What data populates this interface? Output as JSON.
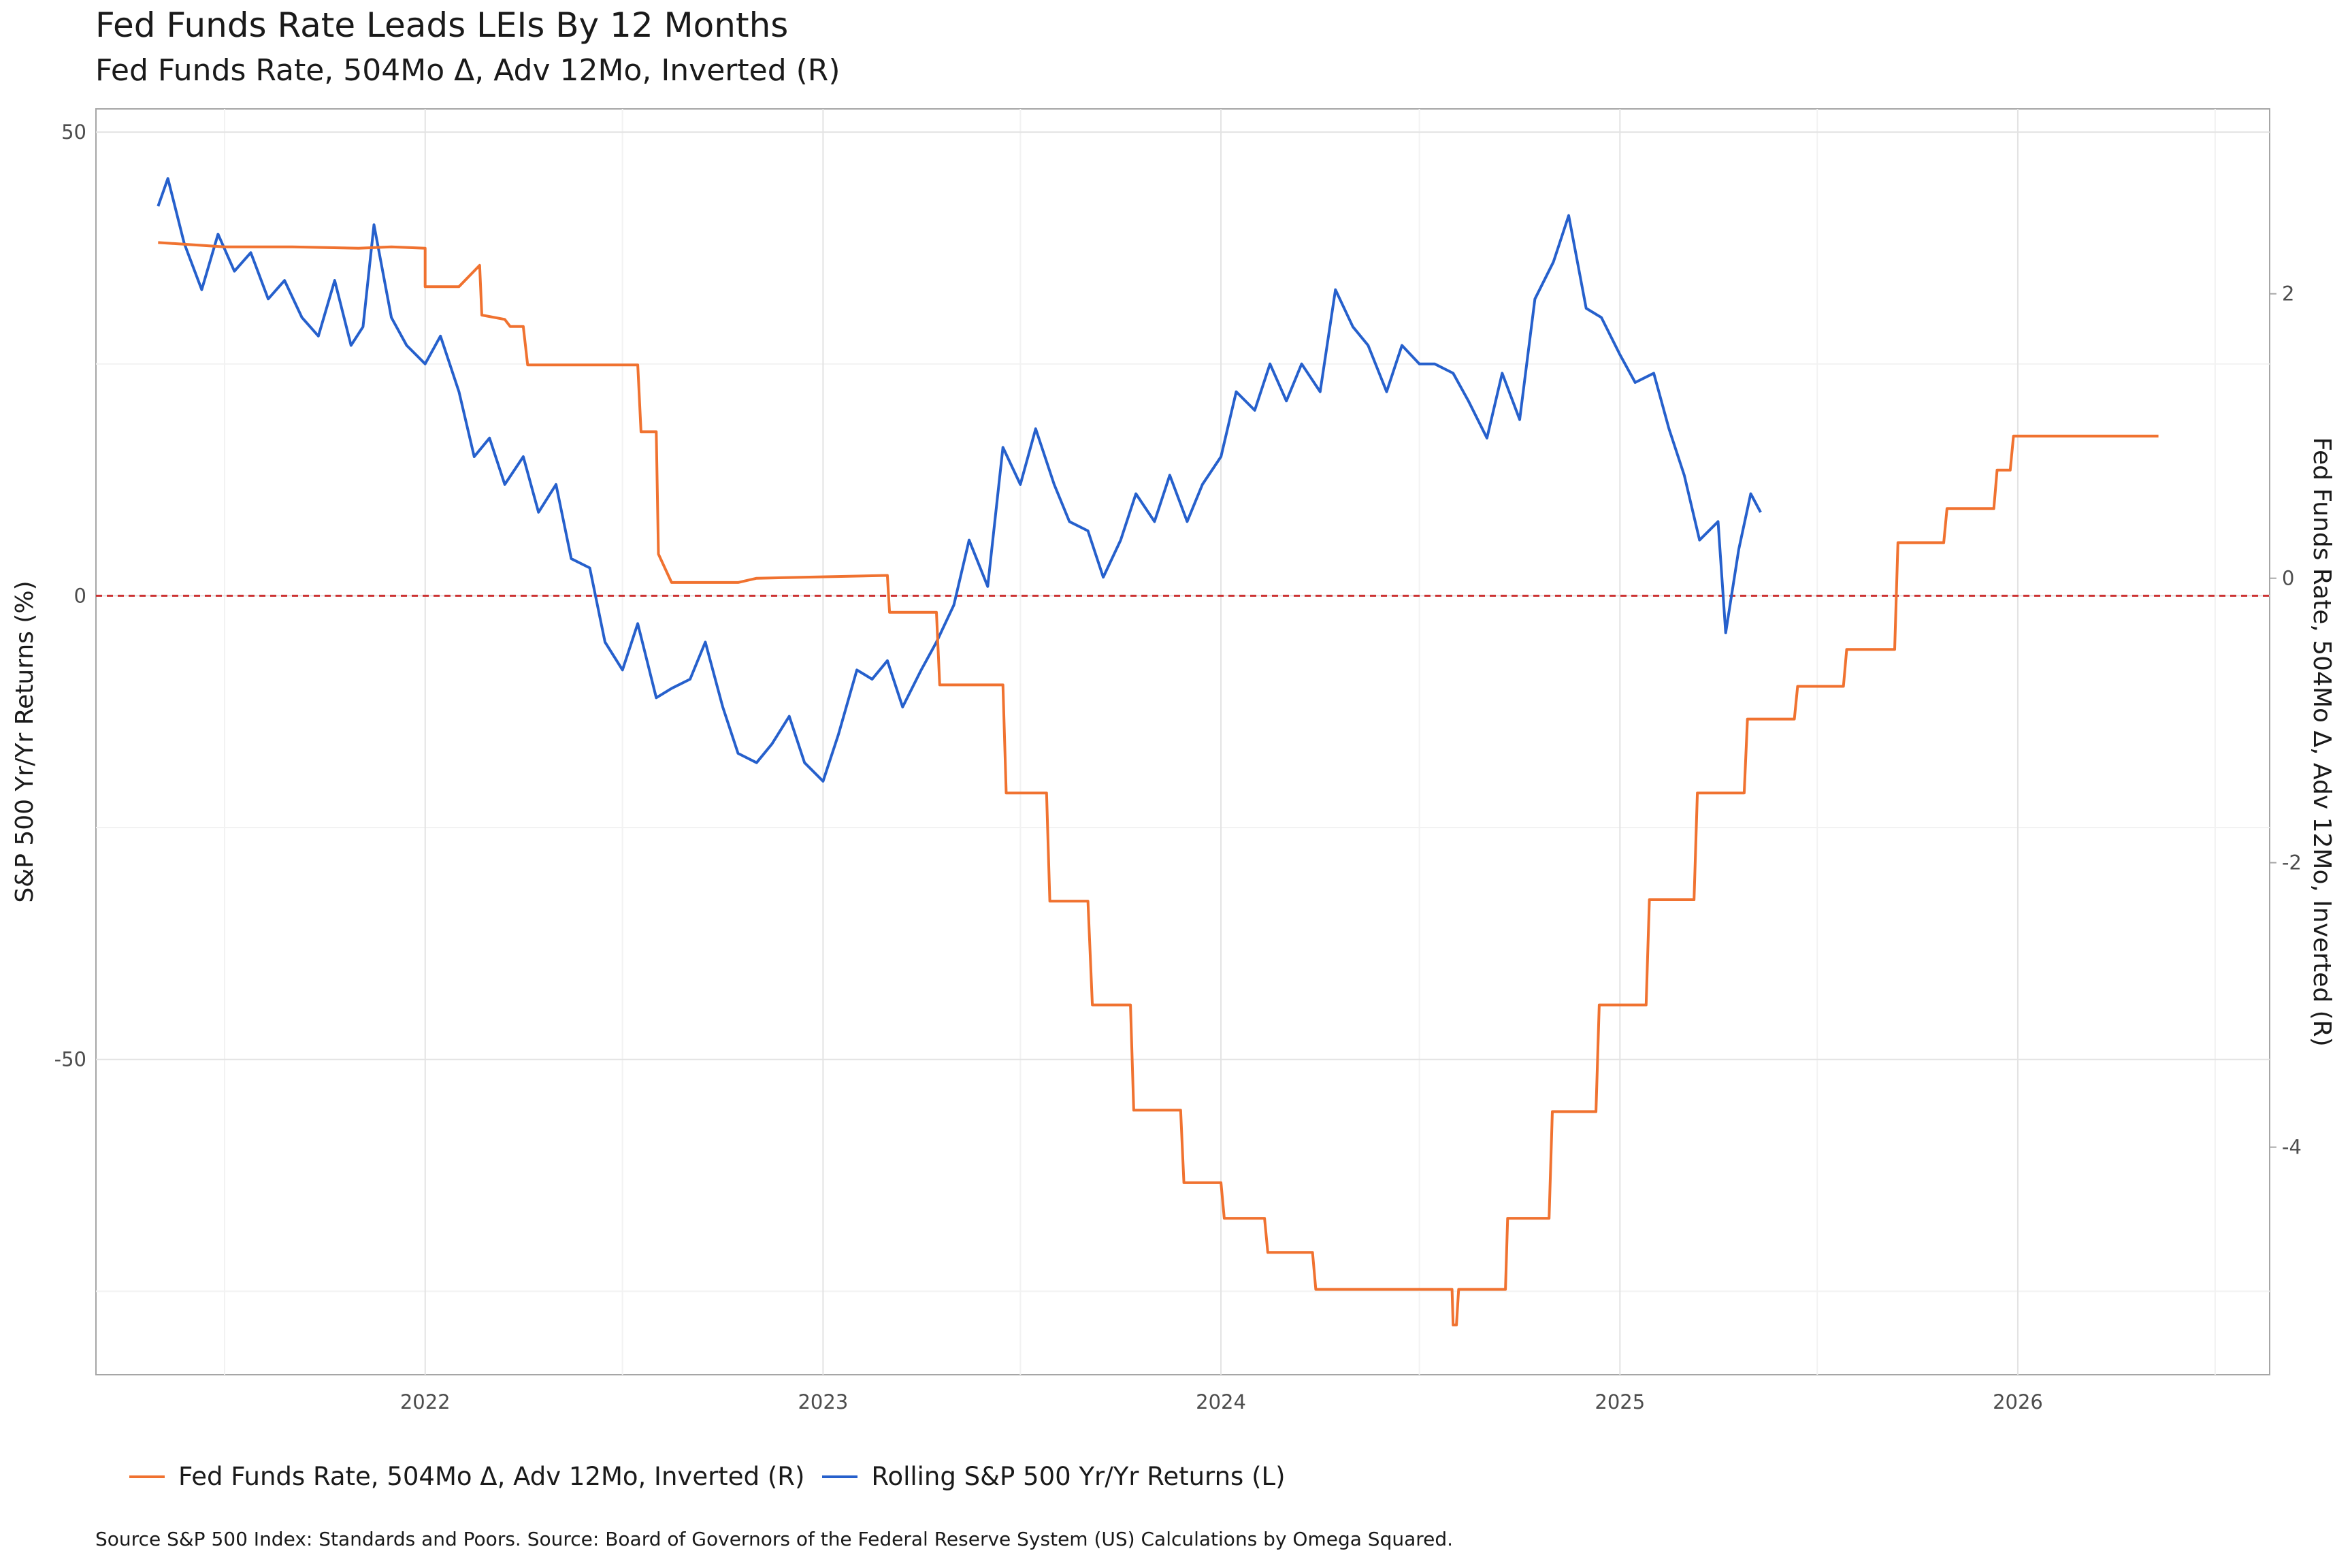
{
  "title": "Fed Funds Rate  Leads LEIs By  12  Months",
  "subtitle": "Fed Funds Rate, 504Mo Δ, Adv 12Mo, Inverted (R)",
  "caption": "Source S&P 500 Index: Standards and Poors. Source:  Board of Governors of the Federal Reserve System (US) Calculations by Omega Squared.",
  "legend": [
    {
      "label": "Fed Funds Rate, 504Mo Δ, Adv 12Mo, Inverted (R)",
      "color": "#f07230"
    },
    {
      "label": "Rolling S&P 500 Yr/Yr Returns (L)",
      "color": "#2660cc"
    }
  ],
  "chart_data": {
    "type": "line",
    "xlabel": "",
    "ylabel_left": "S&P 500 Yr/Yr Returns (%)",
    "ylabel_right": "Fed Funds Rate, 504Mo Δ, Adv 12Mo, Inverted (R)",
    "x_ticks": [
      "2022",
      "2023",
      "2024",
      "2025",
      "2026"
    ],
    "y_left_ticks": [
      "50",
      "0",
      "-50"
    ],
    "y_right_ticks": [
      "2",
      "0",
      "-2",
      "-4"
    ],
    "xlim": [
      "2021-03-05",
      "2026-08-20"
    ],
    "ylim_left": [
      -84,
      52.5
    ],
    "ylim_right": [
      -5.6,
      3.3
    ],
    "zero_line": {
      "value": 0,
      "style": "dashed",
      "color": "#cc3333"
    },
    "grid": true,
    "series": [
      {
        "name": "Rolling S&P 500 Yr/Yr Returns (L)",
        "axis": "left",
        "color": "#2660cc",
        "points": [
          [
            "2021-05-01",
            42
          ],
          [
            "2021-05-10",
            45
          ],
          [
            "2021-05-25",
            38
          ],
          [
            "2021-06-10",
            33
          ],
          [
            "2021-06-25",
            39
          ],
          [
            "2021-07-10",
            35
          ],
          [
            "2021-07-25",
            37
          ],
          [
            "2021-08-10",
            32
          ],
          [
            "2021-08-25",
            34
          ],
          [
            "2021-09-10",
            30
          ],
          [
            "2021-09-25",
            28
          ],
          [
            "2021-10-10",
            34
          ],
          [
            "2021-10-25",
            27
          ],
          [
            "2021-11-05",
            29
          ],
          [
            "2021-11-15",
            40
          ],
          [
            "2021-12-01",
            30
          ],
          [
            "2021-12-15",
            27
          ],
          [
            "2022-01-01",
            25
          ],
          [
            "2022-01-15",
            28
          ],
          [
            "2022-02-01",
            22
          ],
          [
            "2022-02-15",
            15
          ],
          [
            "2022-03-01",
            17
          ],
          [
            "2022-03-15",
            12
          ],
          [
            "2022-04-01",
            15
          ],
          [
            "2022-04-15",
            9
          ],
          [
            "2022-05-01",
            12
          ],
          [
            "2022-05-15",
            4
          ],
          [
            "2022-06-01",
            3
          ],
          [
            "2022-06-15",
            -5
          ],
          [
            "2022-07-01",
            -8
          ],
          [
            "2022-07-15",
            -3
          ],
          [
            "2022-08-01",
            -11
          ],
          [
            "2022-08-15",
            -10
          ],
          [
            "2022-09-01",
            -9
          ],
          [
            "2022-09-15",
            -5
          ],
          [
            "2022-10-01",
            -12
          ],
          [
            "2022-10-15",
            -17
          ],
          [
            "2022-11-01",
            -18
          ],
          [
            "2022-11-15",
            -16
          ],
          [
            "2022-12-01",
            -13
          ],
          [
            "2022-12-15",
            -18
          ],
          [
            "2023-01-01",
            -20
          ],
          [
            "2023-01-15",
            -15
          ],
          [
            "2023-02-01",
            -8
          ],
          [
            "2023-02-15",
            -9
          ],
          [
            "2023-03-01",
            -7
          ],
          [
            "2023-03-15",
            -12
          ],
          [
            "2023-04-01",
            -8
          ],
          [
            "2023-04-15",
            -5
          ],
          [
            "2023-05-01",
            -1
          ],
          [
            "2023-05-15",
            6
          ],
          [
            "2023-06-01",
            1
          ],
          [
            "2023-06-15",
            16
          ],
          [
            "2023-07-01",
            12
          ],
          [
            "2023-07-15",
            18
          ],
          [
            "2023-08-01",
            12
          ],
          [
            "2023-08-15",
            8
          ],
          [
            "2023-09-01",
            7
          ],
          [
            "2023-09-15",
            2
          ],
          [
            "2023-10-01",
            6
          ],
          [
            "2023-10-15",
            11
          ],
          [
            "2023-11-01",
            8
          ],
          [
            "2023-11-15",
            13
          ],
          [
            "2023-12-01",
            8
          ],
          [
            "2023-12-15",
            12
          ],
          [
            "2024-01-01",
            15
          ],
          [
            "2024-01-15",
            22
          ],
          [
            "2024-02-01",
            20
          ],
          [
            "2024-02-15",
            25
          ],
          [
            "2024-03-01",
            21
          ],
          [
            "2024-03-15",
            25
          ],
          [
            "2024-04-01",
            22
          ],
          [
            "2024-04-15",
            33
          ],
          [
            "2024-05-01",
            29
          ],
          [
            "2024-05-15",
            27
          ],
          [
            "2024-06-01",
            22
          ],
          [
            "2024-06-15",
            27
          ],
          [
            "2024-07-01",
            25
          ],
          [
            "2024-07-15",
            25
          ],
          [
            "2024-08-01",
            24
          ],
          [
            "2024-08-15",
            21
          ],
          [
            "2024-09-01",
            17
          ],
          [
            "2024-09-15",
            24
          ],
          [
            "2024-10-01",
            19
          ],
          [
            "2024-10-15",
            32
          ],
          [
            "2024-11-01",
            36
          ],
          [
            "2024-11-15",
            41
          ],
          [
            "2024-12-01",
            31
          ],
          [
            "2024-12-15",
            30
          ],
          [
            "2025-01-01",
            26
          ],
          [
            "2025-01-15",
            23
          ],
          [
            "2025-02-01",
            24
          ],
          [
            "2025-02-15",
            18
          ],
          [
            "2025-03-01",
            13
          ],
          [
            "2025-03-15",
            6
          ],
          [
            "2025-04-01",
            8
          ],
          [
            "2025-04-08",
            -4
          ],
          [
            "2025-04-20",
            5
          ],
          [
            "2025-05-01",
            11
          ],
          [
            "2025-05-10",
            9
          ]
        ]
      },
      {
        "name": "Fed Funds Rate, 504Mo Δ, Adv 12Mo, Inverted (R)",
        "axis": "right",
        "color": "#f07230",
        "points": [
          [
            "2021-05-01",
            2.36
          ],
          [
            "2021-07-01",
            2.33
          ],
          [
            "2021-09-01",
            2.33
          ],
          [
            "2021-11-01",
            2.32
          ],
          [
            "2021-12-01",
            2.33
          ],
          [
            "2022-01-01",
            2.32
          ],
          [
            "2022-01-01",
            2.05
          ],
          [
            "2022-02-01",
            2.05
          ],
          [
            "2022-02-20",
            2.2
          ],
          [
            "2022-02-22",
            1.85
          ],
          [
            "2022-03-15",
            1.82
          ],
          [
            "2022-03-20",
            1.77
          ],
          [
            "2022-04-01",
            1.77
          ],
          [
            "2022-04-05",
            1.5
          ],
          [
            "2022-07-15",
            1.5
          ],
          [
            "2022-07-18",
            1.03
          ],
          [
            "2022-08-01",
            1.03
          ],
          [
            "2022-08-03",
            0.17
          ],
          [
            "2022-08-15",
            -0.03
          ],
          [
            "2022-10-15",
            -0.03
          ],
          [
            "2022-11-01",
            0.0
          ],
          [
            "2023-03-01",
            0.02
          ],
          [
            "2023-03-03",
            -0.24
          ],
          [
            "2023-04-15",
            -0.24
          ],
          [
            "2023-04-18",
            -0.75
          ],
          [
            "2023-06-15",
            -0.75
          ],
          [
            "2023-06-18",
            -1.51
          ],
          [
            "2023-07-25",
            -1.51
          ],
          [
            "2023-07-28",
            -2.27
          ],
          [
            "2023-09-01",
            -2.27
          ],
          [
            "2023-09-05",
            -3.0
          ],
          [
            "2023-10-10",
            -3.0
          ],
          [
            "2023-10-13",
            -3.74
          ],
          [
            "2023-11-25",
            -3.74
          ],
          [
            "2023-11-28",
            -4.25
          ],
          [
            "2024-01-01",
            -4.25
          ],
          [
            "2024-01-04",
            -4.5
          ],
          [
            "2024-02-10",
            -4.5
          ],
          [
            "2024-02-13",
            -4.74
          ],
          [
            "2024-03-25",
            -4.74
          ],
          [
            "2024-03-28",
            -5.0
          ],
          [
            "2024-07-31",
            -5.0
          ],
          [
            "2024-08-01",
            -5.25
          ],
          [
            "2024-08-04",
            -5.25
          ],
          [
            "2024-08-06",
            -5.0
          ],
          [
            "2024-09-18",
            -5.0
          ],
          [
            "2024-09-20",
            -4.5
          ],
          [
            "2024-10-28",
            -4.5
          ],
          [
            "2024-10-31",
            -3.75
          ],
          [
            "2024-12-10",
            -3.75
          ],
          [
            "2024-12-13",
            -3.0
          ],
          [
            "2025-01-25",
            -3.0
          ],
          [
            "2025-01-28",
            -2.26
          ],
          [
            "2025-03-10",
            -2.26
          ],
          [
            "2025-03-13",
            -1.51
          ],
          [
            "2025-04-25",
            -1.51
          ],
          [
            "2025-04-28",
            -0.99
          ],
          [
            "2025-06-10",
            -0.99
          ],
          [
            "2025-06-13",
            -0.76
          ],
          [
            "2025-07-25",
            -0.76
          ],
          [
            "2025-07-28",
            -0.5
          ],
          [
            "2025-09-10",
            -0.5
          ],
          [
            "2025-09-13",
            0.25
          ],
          [
            "2025-10-25",
            0.25
          ],
          [
            "2025-10-28",
            0.49
          ],
          [
            "2025-12-10",
            0.49
          ],
          [
            "2025-12-13",
            0.76
          ],
          [
            "2025-12-25",
            0.76
          ],
          [
            "2025-12-28",
            1.0
          ],
          [
            "2026-05-10",
            1.0
          ]
        ]
      }
    ]
  }
}
